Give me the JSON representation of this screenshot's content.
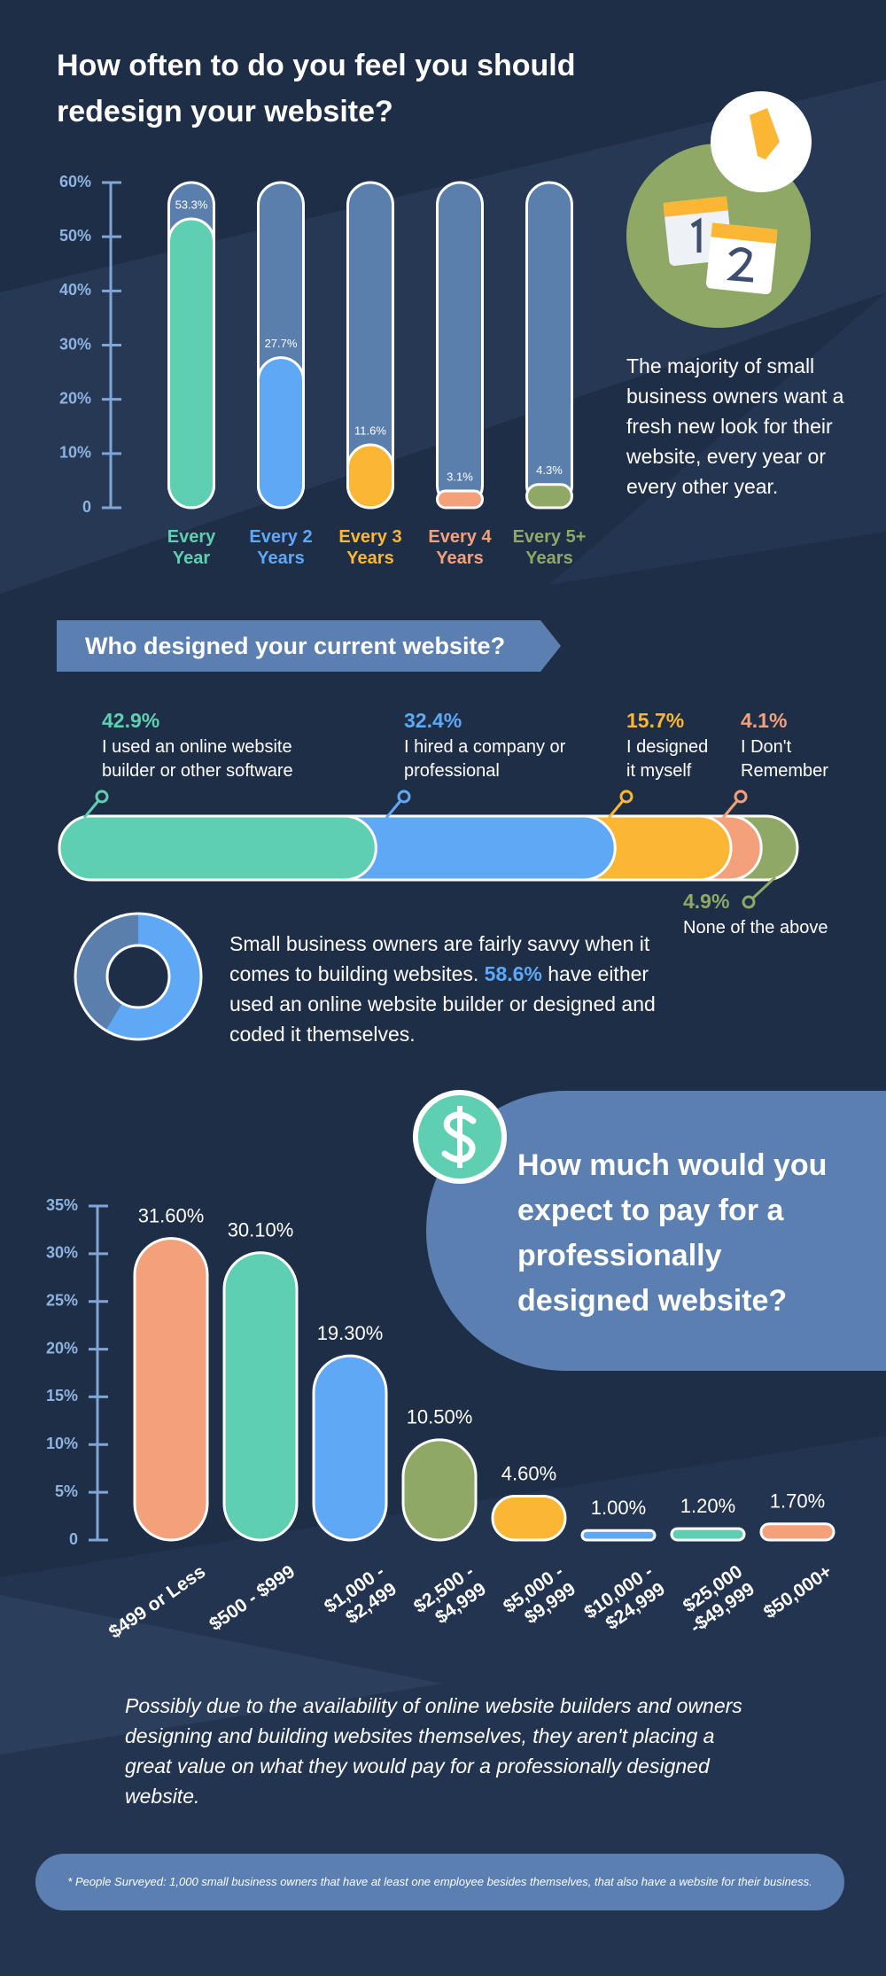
{
  "chart_data": [
    {
      "type": "bar",
      "title": "How often to do you feel you should redesign your website?",
      "categories": [
        "Every Year",
        "Every 2 Years",
        "Every 3 Years",
        "Every 4 Years",
        "Every 5+ Years"
      ],
      "values": [
        53.3,
        27.7,
        11.6,
        3.1,
        4.3
      ],
      "value_labels": [
        "53.3%",
        "27.7%",
        "11.6%",
        "3.1%",
        "4.3%"
      ],
      "colors": [
        "#5ecfb1",
        "#5fa8f5",
        "#fbb733",
        "#f4a07a",
        "#8fa866"
      ],
      "ylim": [
        0,
        60
      ],
      "yticks": [
        0,
        {
          "value": 10,
          "label": "10%"
        },
        {
          "value": 20,
          "label": "20%"
        },
        {
          "value": 30,
          "label": "30%"
        },
        {
          "value": 40,
          "label": "40%"
        },
        {
          "value": 50,
          "label": "50%"
        },
        {
          "value": 60,
          "label": "60%"
        }
      ],
      "note": "The majority of small business owners want a fresh new look for their website, every year or every other year."
    },
    {
      "type": "stacked-bar",
      "title": "Who designed your current website?",
      "categories": [
        "I used an online website builder or other software",
        "I hired a company or professional",
        "I designed it myself",
        "I Don't Remember",
        "None of the above"
      ],
      "values": [
        42.9,
        32.4,
        15.7,
        4.1,
        4.9
      ],
      "value_labels": [
        "42.9%",
        "32.4%",
        "15.7%",
        "4.1%",
        "4.9%"
      ],
      "colors": [
        "#5ecfb1",
        "#5fa8f5",
        "#fbb733",
        "#f4a07a",
        "#8fa866"
      ]
    },
    {
      "type": "donut",
      "value": 58.6,
      "value_label": "58.6%",
      "color": "#5fa8f5",
      "text_before": "Small business owners are fairly savvy when it comes to building websites.",
      "text_after": "have either used an online website builder or designed and coded it themselves."
    },
    {
      "type": "bar",
      "title": "How much would you expect to pay for a professionally designed website?",
      "categories": [
        "$499 or Less",
        "$500 - $999",
        "$1,000 - $2,499",
        "$2,500 - $4,999",
        "$5,000 - $9,999",
        "$10,000 - $24,999",
        "$25,000 -$49,999",
        "$50,000+"
      ],
      "values": [
        31.6,
        30.1,
        19.3,
        10.5,
        4.6,
        1.0,
        1.2,
        1.7
      ],
      "value_labels": [
        "31.60%",
        "30.10%",
        "19.30%",
        "10.50%",
        "4.60%",
        "1.00%",
        "1.20%",
        "1.70%"
      ],
      "colors": [
        "#f4a07a",
        "#5ecfb1",
        "#5fa8f5",
        "#8fa866",
        "#fbb733",
        "#5fa8f5",
        "#5ecfb1",
        "#f4a07a"
      ],
      "ylim": [
        0,
        35
      ],
      "yticks": [
        0,
        {
          "value": 5,
          "label": "5%"
        },
        {
          "value": 10,
          "label": "10%"
        },
        {
          "value": 15,
          "label": "15%"
        },
        {
          "value": 20,
          "label": "20%"
        },
        {
          "value": 25,
          "label": "25%"
        },
        {
          "value": 30,
          "label": "30%"
        },
        {
          "value": 35,
          "label": "35%"
        }
      ],
      "note": "Possibly due to the availability of online website builders and owners designing and building websites themselves, they aren't placing a great value on what they would pay for a professionally designed website."
    }
  ],
  "footnote": "* People Surveyed: 1,000 small business owners that have at least one employee besides themselves, that also have a website for their business."
}
